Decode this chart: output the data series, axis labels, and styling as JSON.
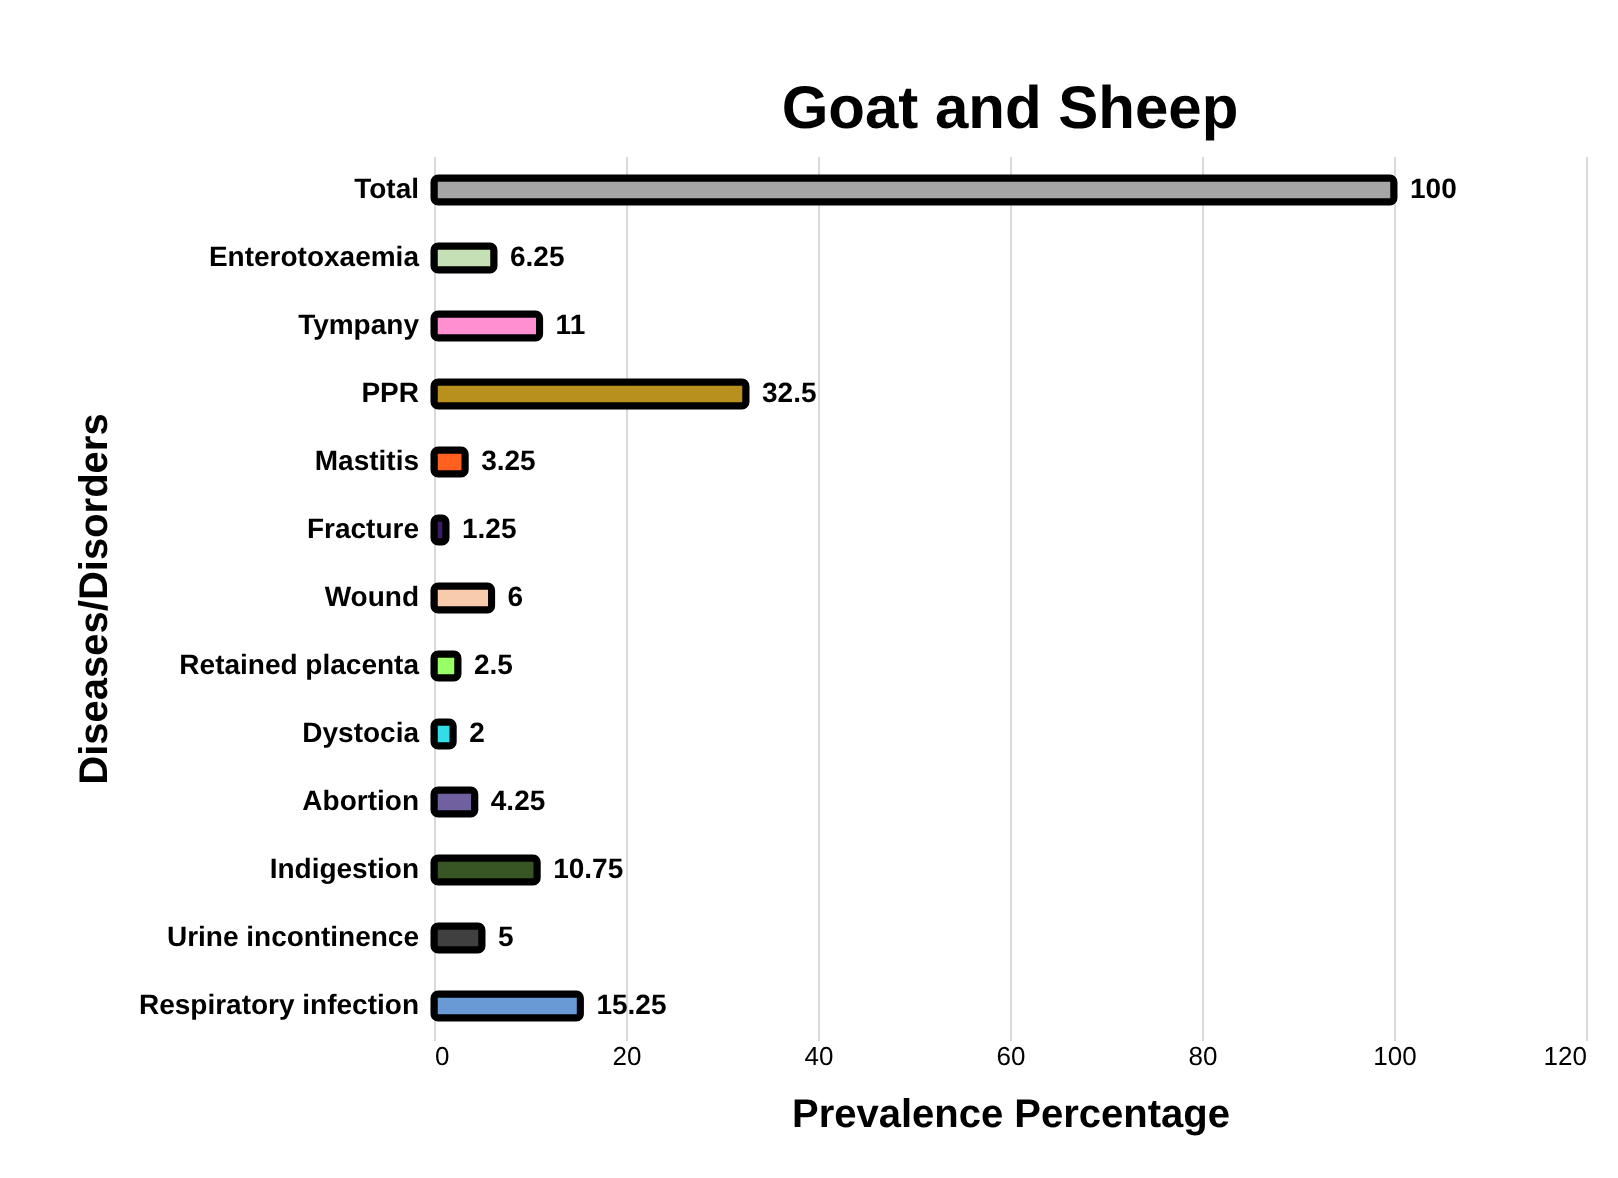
{
  "chart_data": {
    "type": "bar",
    "orientation": "horizontal",
    "title": "Goat and Sheep",
    "xlabel": "Prevalence Percentage",
    "ylabel": "Diseases/Disorders",
    "categories": [
      "Total",
      "Enterotoxaemia",
      "Tympany",
      "PPR",
      "Mastitis",
      "Fracture",
      "Wound",
      "Retained placenta",
      "Dystocia",
      "Abortion",
      "Indigestion",
      "Urine incontinence",
      "Respiratory infection"
    ],
    "values": [
      100,
      6.25,
      11,
      32.5,
      3.25,
      1.25,
      6,
      2.5,
      2,
      4.25,
      10.75,
      5,
      15.25
    ],
    "colors": [
      "#a6a6a6",
      "#c5e0b4",
      "#ff8fd0",
      "#b8901e",
      "#ff5f1f",
      "#3a1a6a",
      "#f8cbad",
      "#99ff66",
      "#33dde8",
      "#7060a0",
      "#375623",
      "#404040",
      "#6a9ad6"
    ],
    "xlim": [
      0,
      120
    ],
    "xticks": [
      0,
      20,
      40,
      60,
      80,
      100,
      120
    ],
    "grid": "x",
    "data_labels": true
  }
}
